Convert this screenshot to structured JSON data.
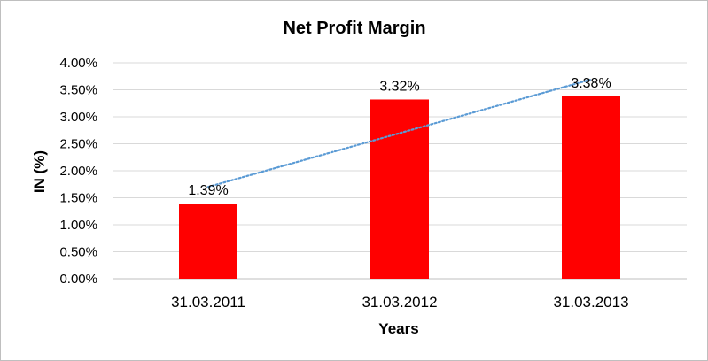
{
  "chart_data": {
    "type": "bar",
    "title": "Net Profit Margin",
    "xlabel": "Years",
    "ylabel": "IN (%)",
    "categories": [
      "31.03.2011",
      "31.03.2012",
      "31.03.2013"
    ],
    "values": [
      1.39,
      3.32,
      3.38
    ],
    "value_labels": [
      "1.39%",
      "3.32%",
      "3.38%"
    ],
    "ylim": [
      0,
      4
    ],
    "yticks": [
      0,
      0.5,
      1.0,
      1.5,
      2.0,
      2.5,
      3.0,
      3.5,
      4.0
    ],
    "ytick_labels": [
      "0.00%",
      "0.50%",
      "1.00%",
      "1.50%",
      "2.00%",
      "2.50%",
      "3.00%",
      "3.50%",
      "4.00%"
    ],
    "grid": true,
    "trendline": {
      "type": "linear",
      "style": "dotted",
      "color": "#5b9bd5"
    },
    "colors": {
      "bar": "#ff0000",
      "grid": "#d9d9d9",
      "axis": "#bfbfbf"
    }
  }
}
